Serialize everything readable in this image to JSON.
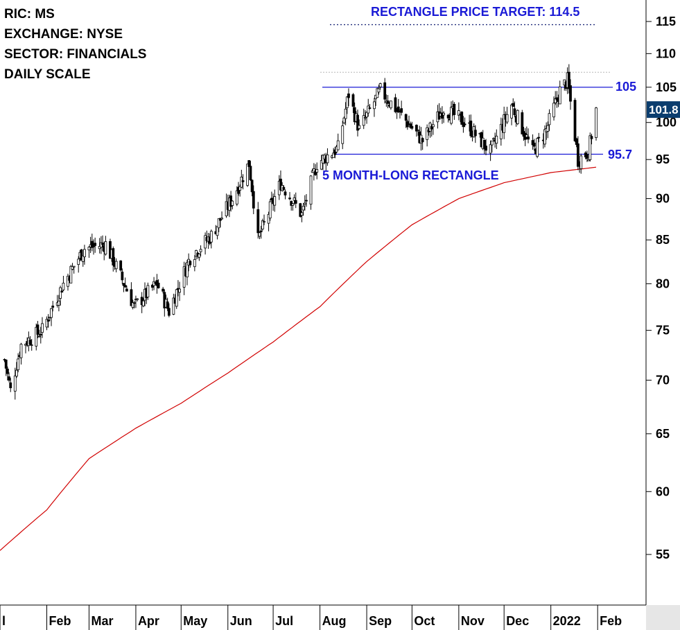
{
  "info": {
    "ric": "RIC: MS",
    "exchange": "EXCHANGE: NYSE",
    "sector": "SECTOR: FINANCIALS",
    "scale": "DAILY SCALE"
  },
  "annotations": {
    "target_label": "RECTANGLE PRICE TARGET: 114.5",
    "pattern_label": "5 MONTH-LONG RECTANGLE",
    "resistance_label": "105",
    "support_label": "95.7",
    "last_price_label": "101.8"
  },
  "colors": {
    "annotation": "#1a1ad6",
    "moving_average": "#d10000",
    "candles": "#000000",
    "price_box": "#0b3d6e",
    "target_line": "#1f2a7a"
  },
  "chart_data": {
    "type": "candlestick",
    "title": "",
    "xlabel": "",
    "ylabel": "",
    "y_scale": "log",
    "ylim": [
      51,
      118
    ],
    "y_ticks": [
      55,
      60,
      65,
      70,
      75,
      80,
      85,
      90,
      95,
      100,
      105,
      110,
      115
    ],
    "x_ticks": [
      "l",
      "Feb",
      "Mar",
      "Apr",
      "May",
      "Jun",
      "Jul",
      "Aug",
      "Sep",
      "Oct",
      "Nov",
      "Dec",
      "2022",
      "Feb"
    ],
    "grid": false,
    "levels": {
      "resistance": 105,
      "support": 95.7,
      "target": 114.5,
      "prior_high": 107.2,
      "last_price": 101.8
    },
    "price_anchors": [
      {
        "date": "2021-01-04",
        "close": 72
      },
      {
        "date": "2021-01-08",
        "close": 69
      },
      {
        "date": "2021-01-15",
        "close": 73.5
      },
      {
        "date": "2021-01-29",
        "close": 75
      },
      {
        "date": "2021-02-12",
        "close": 80
      },
      {
        "date": "2021-02-26",
        "close": 84
      },
      {
        "date": "2021-03-12",
        "close": 84.5
      },
      {
        "date": "2021-03-31",
        "close": 77.5
      },
      {
        "date": "2021-04-15",
        "close": 80
      },
      {
        "date": "2021-04-23",
        "close": 77
      },
      {
        "date": "2021-05-07",
        "close": 83
      },
      {
        "date": "2021-05-21",
        "close": 85.5
      },
      {
        "date": "2021-06-04",
        "close": 90
      },
      {
        "date": "2021-06-15",
        "close": 94.5
      },
      {
        "date": "2021-06-21",
        "close": 85
      },
      {
        "date": "2021-07-06",
        "close": 92
      },
      {
        "date": "2021-07-20",
        "close": 88
      },
      {
        "date": "2021-07-30",
        "close": 94.5
      },
      {
        "date": "2021-08-13",
        "close": 96.5
      },
      {
        "date": "2021-08-20",
        "close": 104
      },
      {
        "date": "2021-08-27",
        "close": 99
      },
      {
        "date": "2021-09-10",
        "close": 104.5
      },
      {
        "date": "2021-09-24",
        "close": 101
      },
      {
        "date": "2021-10-08",
        "close": 97.5
      },
      {
        "date": "2021-10-22",
        "close": 102
      },
      {
        "date": "2021-11-05",
        "close": 100
      },
      {
        "date": "2021-11-22",
        "close": 96
      },
      {
        "date": "2021-12-06",
        "close": 102.5
      },
      {
        "date": "2021-12-20",
        "close": 96
      },
      {
        "date": "2021-12-29",
        "close": 99
      },
      {
        "date": "2022-01-07",
        "close": 104.5
      },
      {
        "date": "2022-01-12",
        "close": 106
      },
      {
        "date": "2022-01-19",
        "close": 95
      },
      {
        "date": "2022-01-26",
        "close": 96
      },
      {
        "date": "2022-01-31",
        "close": 101.8
      }
    ],
    "moving_average_anchors": [
      {
        "date": "2021-01-01",
        "value": 55.3
      },
      {
        "date": "2021-02-01",
        "value": 58.5
      },
      {
        "date": "2021-03-01",
        "value": 62.8
      },
      {
        "date": "2021-04-01",
        "value": 65.5
      },
      {
        "date": "2021-05-01",
        "value": 67.8
      },
      {
        "date": "2021-06-01",
        "value": 70.7
      },
      {
        "date": "2021-07-01",
        "value": 73.8
      },
      {
        "date": "2021-08-01",
        "value": 77.5
      },
      {
        "date": "2021-09-01",
        "value": 82.5
      },
      {
        "date": "2021-10-01",
        "value": 86.8
      },
      {
        "date": "2021-11-01",
        "value": 90
      },
      {
        "date": "2021-12-01",
        "value": 92
      },
      {
        "date": "2022-01-01",
        "value": 93.3
      },
      {
        "date": "2022-01-31",
        "value": 94
      }
    ]
  }
}
